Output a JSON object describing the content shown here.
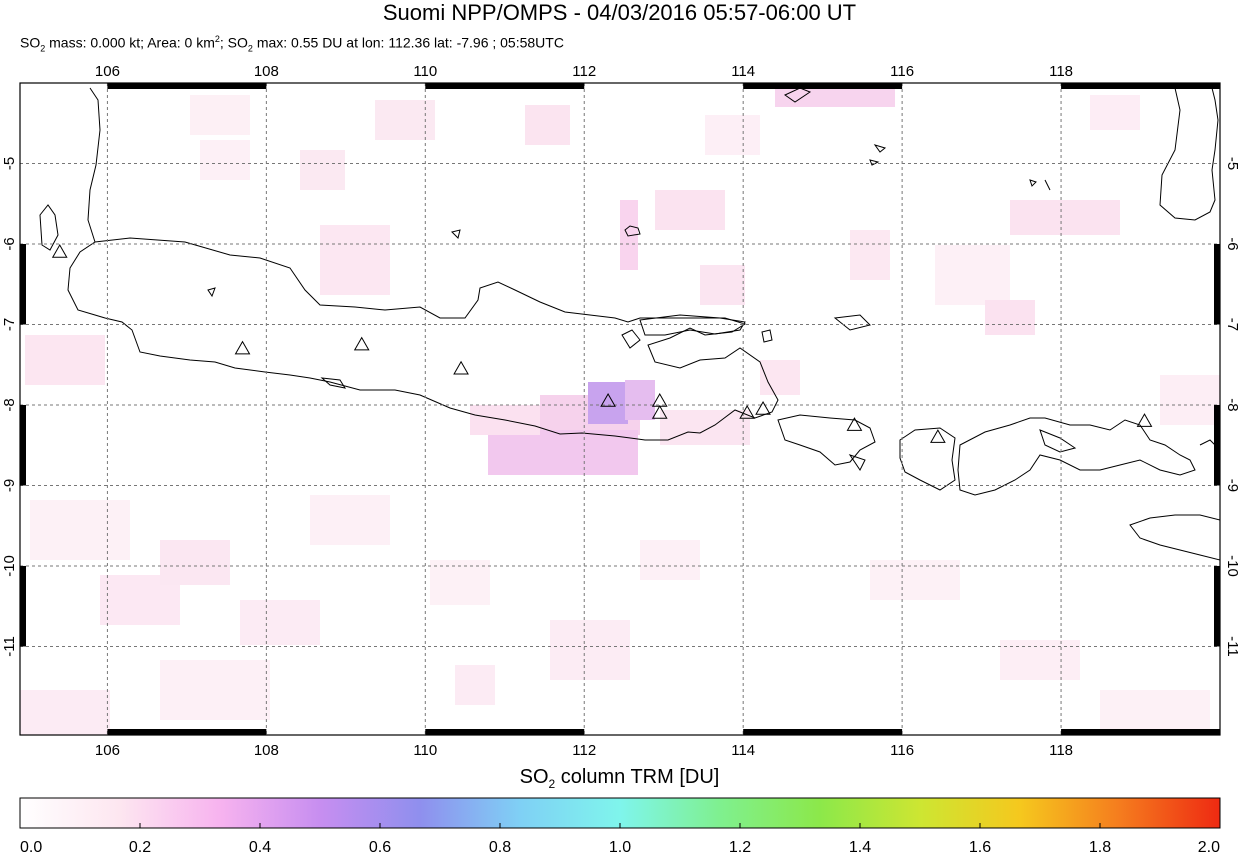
{
  "header": {
    "title": "Suomi NPP/OMPS - 04/03/2016 05:57-06:00 UT",
    "stats": {
      "so2_mass_prefix": "SO",
      "so2_mass_text": " mass: 0.000 kt; Area: 0 km",
      "so2_max_prefix": "; SO",
      "so2_max_text": " max: 0.55 DU at lon: 112.36 lat: -7.96 ; 05:58UTC"
    }
  },
  "map": {
    "lon_range": [
      104.9,
      120.0
    ],
    "lat_range": [
      -12.1,
      -4.0
    ],
    "lon_ticks": [
      "106",
      "108",
      "110",
      "112",
      "114",
      "116",
      "118"
    ],
    "lat_ticks": [
      "-5",
      "-6",
      "-7",
      "-8",
      "-9",
      "-10",
      "-11"
    ],
    "volcano_markers": [
      {
        "lon": 105.4,
        "lat": -6.1
      },
      {
        "lon": 107.7,
        "lat": -7.3
      },
      {
        "lon": 109.2,
        "lat": -7.25
      },
      {
        "lon": 110.45,
        "lat": -7.55
      },
      {
        "lon": 112.3,
        "lat": -7.95
      },
      {
        "lon": 112.95,
        "lat": -7.95
      },
      {
        "lon": 112.95,
        "lat": -8.1
      },
      {
        "lon": 114.05,
        "lat": -8.1
      },
      {
        "lon": 114.25,
        "lat": -8.05
      },
      {
        "lon": 115.4,
        "lat": -8.25
      },
      {
        "lon": 116.45,
        "lat": -8.4
      },
      {
        "lon": 119.05,
        "lat": -8.2
      }
    ],
    "so2_max_point": {
      "lon": 112.36,
      "lat": -7.96,
      "value": 0.55
    }
  },
  "colorbar": {
    "title_prefix": "SO",
    "title_suffix": " column TRM [DU]",
    "tick_labels": [
      "0.0",
      "0.2",
      "0.4",
      "0.6",
      "0.8",
      "1.0",
      "1.2",
      "1.4",
      "1.6",
      "1.8",
      "2.0"
    ],
    "colors": [
      "#ffffff",
      "#fde6f0",
      "#f7b3ef",
      "#c78ef0",
      "#8f8fee",
      "#7fd0f5",
      "#7ff5ec",
      "#7ff08f",
      "#8ce84a",
      "#cde632",
      "#f5c81e",
      "#f57c1e",
      "#ee2a12"
    ]
  }
}
